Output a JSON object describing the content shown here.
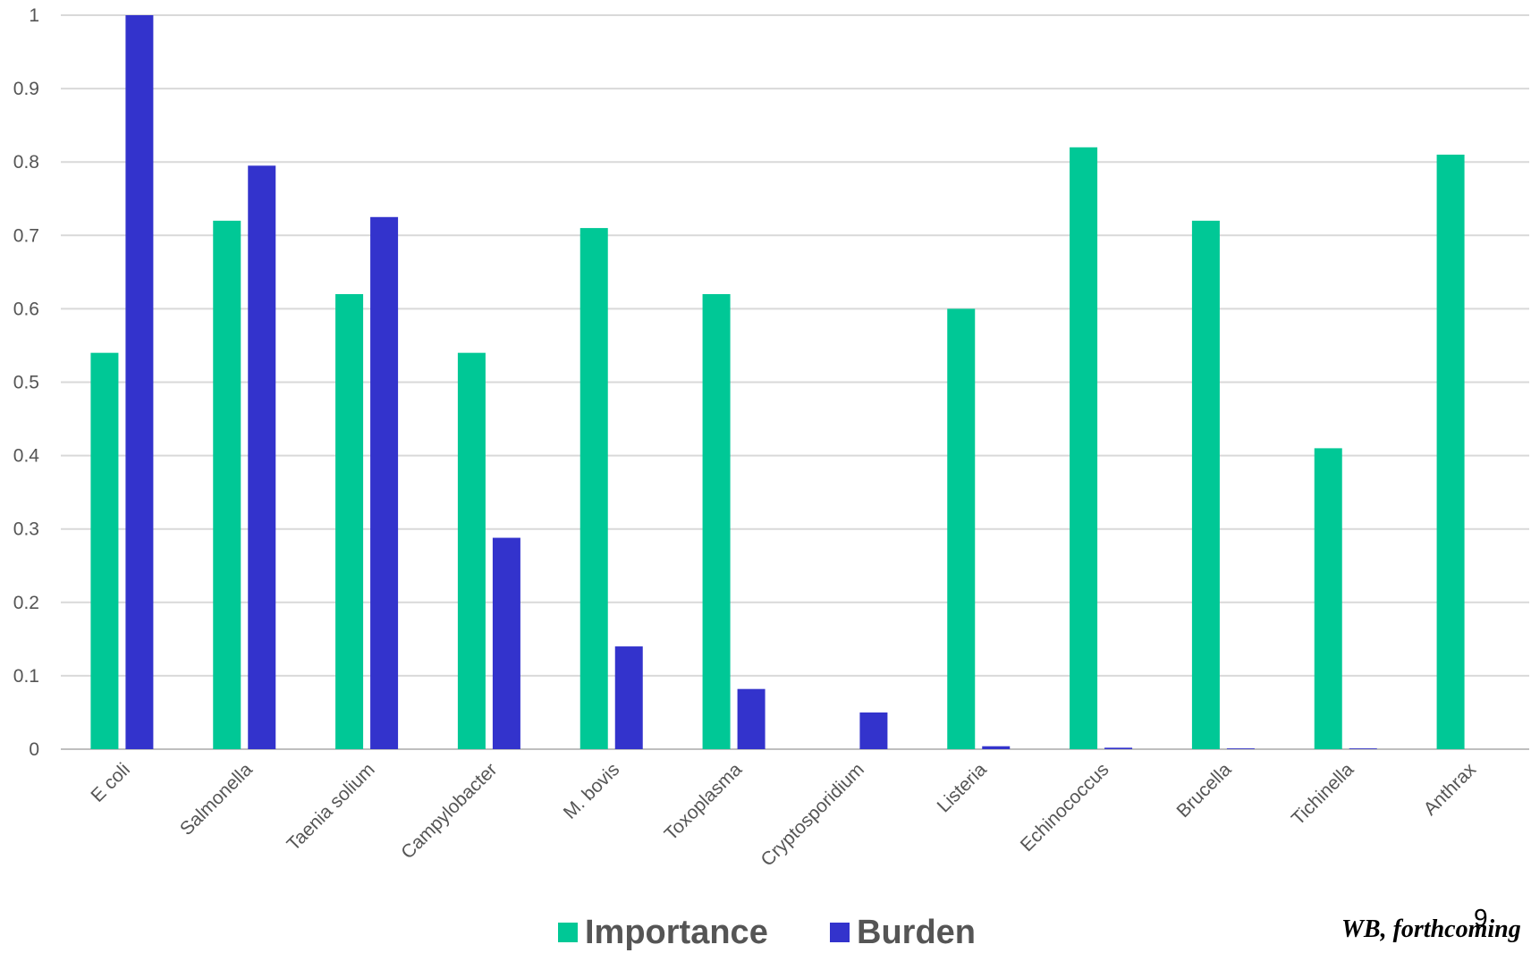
{
  "chart_data": {
    "type": "bar",
    "categories": [
      "E coli",
      "Salmonella",
      "Taenia solium",
      "Campylobacter",
      "M. bovis",
      "Toxoplasma",
      "Cryptosporidium",
      "Listeria",
      "Echinococcus",
      "Brucella",
      "Tichinella",
      "Anthrax"
    ],
    "series": [
      {
        "name": "Importance",
        "values": [
          0.54,
          0.72,
          0.62,
          0.54,
          0.71,
          0.62,
          0,
          0.6,
          0.82,
          0.72,
          0.41,
          0.81
        ]
      },
      {
        "name": "Burden",
        "values": [
          1.0,
          0.795,
          0.725,
          0.288,
          0.14,
          0.082,
          0.05,
          0.004,
          0.002,
          0.001,
          0.001,
          0
        ]
      }
    ],
    "title": "",
    "xlabel": "",
    "ylabel": "",
    "ylim": [
      0,
      1
    ],
    "yticks": [
      "0",
      "0.1",
      "0.2",
      "0.3",
      "0.4",
      "0.5",
      "0.6",
      "0.7",
      "0.8",
      "0.9",
      "1"
    ],
    "grid": true,
    "legend": "bottom-center"
  },
  "colors": {
    "importance": "#00C896",
    "burden": "#3333CC",
    "grid": "#D9D9D9"
  },
  "footer": {
    "credit": "WB, forthcoming",
    "page_number": "9"
  }
}
